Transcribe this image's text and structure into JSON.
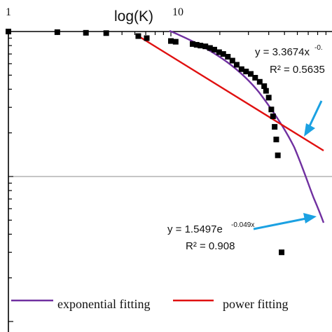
{
  "chart_data": {
    "type": "scatter",
    "xlabel": "log(K)",
    "x_ticks": [
      "1",
      "10"
    ],
    "x_scale": "log",
    "y_scale": "log",
    "grid": false,
    "legend_placement": "bottom",
    "colors": {
      "points": "#000000",
      "exponential": "#7030a0",
      "power": "#e01010",
      "arrows": "#1ba1e2",
      "axes": "#000000",
      "midline": "#8c8c8c"
    },
    "points": [
      {
        "x": 1.0,
        "y": 1.0
      },
      {
        "x": 2.0,
        "y": 0.99
      },
      {
        "x": 3.0,
        "y": 0.98
      },
      {
        "x": 4.0,
        "y": 0.975
      },
      {
        "x": 6.3,
        "y": 0.93
      },
      {
        "x": 7.1,
        "y": 0.9
      },
      {
        "x": 10.0,
        "y": 0.86
      },
      {
        "x": 10.7,
        "y": 0.85
      },
      {
        "x": 13.6,
        "y": 0.82
      },
      {
        "x": 14.4,
        "y": 0.81
      },
      {
        "x": 15.2,
        "y": 0.8
      },
      {
        "x": 16.3,
        "y": 0.79
      },
      {
        "x": 17.4,
        "y": 0.77
      },
      {
        "x": 18.5,
        "y": 0.75
      },
      {
        "x": 19.8,
        "y": 0.72
      },
      {
        "x": 21.0,
        "y": 0.7
      },
      {
        "x": 22.4,
        "y": 0.67
      },
      {
        "x": 23.9,
        "y": 0.63
      },
      {
        "x": 25.4,
        "y": 0.59
      },
      {
        "x": 27.2,
        "y": 0.55
      },
      {
        "x": 29.0,
        "y": 0.53
      },
      {
        "x": 31.0,
        "y": 0.51
      },
      {
        "x": 33.0,
        "y": 0.48
      },
      {
        "x": 35.2,
        "y": 0.45
      },
      {
        "x": 37.5,
        "y": 0.42
      },
      {
        "x": 38.5,
        "y": 0.39
      },
      {
        "x": 40.0,
        "y": 0.35
      },
      {
        "x": 41.5,
        "y": 0.29
      },
      {
        "x": 42.5,
        "y": 0.26
      },
      {
        "x": 43.5,
        "y": 0.22
      },
      {
        "x": 44.5,
        "y": 0.18
      },
      {
        "x": 45.5,
        "y": 0.14
      },
      {
        "x": 48.0,
        "y": 0.03
      }
    ],
    "series": [
      {
        "name": "exponential fitting",
        "equation": "y = 1.5497e",
        "equation_exponent": "-0.049x",
        "r_squared": "R² = 0.908"
      },
      {
        "name": "power fitting",
        "equation": "y = 3.3674x",
        "equation_exponent": "-0.",
        "r_squared": "R² = 0.5635"
      }
    ]
  }
}
